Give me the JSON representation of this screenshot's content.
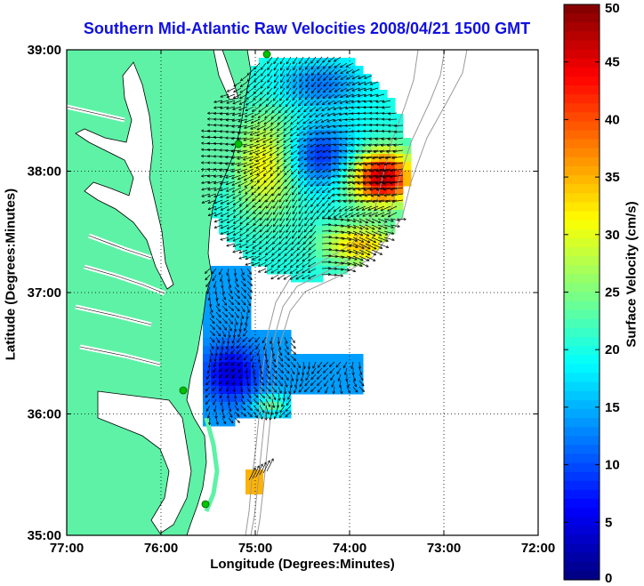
{
  "title": "Southern Mid-Atlantic Raw Velocities 2008/04/21 1500 GMT",
  "x_axis": {
    "label": "Longitude (Degrees:Minutes)",
    "ticks": [
      "77:00",
      "76:00",
      "75:00",
      "74:00",
      "73:00",
      "72:00"
    ]
  },
  "y_axis": {
    "label": "Latitude (Degrees:Minutes)",
    "ticks": [
      "39:00",
      "38:00",
      "37:00",
      "36:00",
      "35:00"
    ]
  },
  "colorbar": {
    "label": "Surface Velocity (cm/s)",
    "ticks": [
      "50",
      "45",
      "40",
      "35",
      "30",
      "25",
      "20",
      "15",
      "10",
      "5",
      "0"
    ],
    "range": [
      0,
      50
    ],
    "colormap": "jet"
  },
  "colors": {
    "land": "#5ef2a6",
    "title": "#1010e0",
    "bathymetry": "#9a9a9a",
    "station": "#00c000",
    "vector": "#000000"
  },
  "map": {
    "grid": "dotted",
    "lon_range": [
      -77,
      -72
    ],
    "lat_range": [
      35,
      39
    ],
    "stations": [
      "station"
    ]
  }
}
